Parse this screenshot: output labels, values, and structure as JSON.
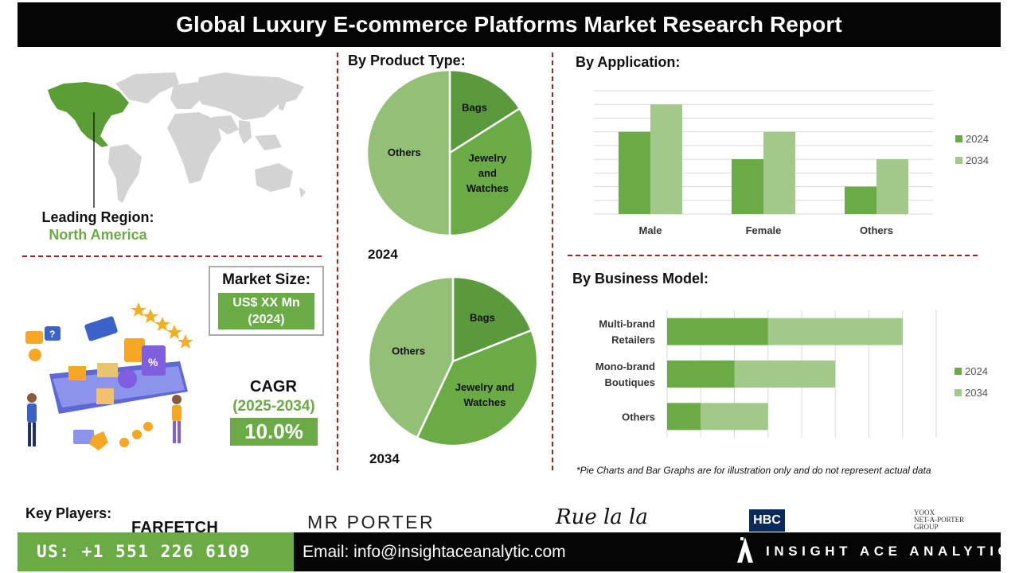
{
  "title": "Global Luxury E-commerce Platforms Market Research Report",
  "region": {
    "label": "Leading Region:",
    "value": "North America"
  },
  "market_size": {
    "label": "Market Size:",
    "value_line1": "US$ XX Mn",
    "value_line2": "(2024)"
  },
  "cagr": {
    "label": "CAGR",
    "years": "(2025-2034)",
    "value": "10.0%"
  },
  "product_type": {
    "title": "By  Product Type:",
    "year_2024": "2024",
    "year_2034": "2034"
  },
  "application": {
    "title": "By Application:"
  },
  "business_model": {
    "title": "By Business Model:"
  },
  "disclaimer": "*Pie Charts and Bar Graphs are for illustration only and do not represent actual data",
  "key_players": {
    "label": "Key Players:",
    "logos": [
      "FARFETCH",
      "MR PORTER",
      "Rue la la",
      "HBC",
      "YOOX NET-A-PORTER GROUP"
    ],
    "yoox_line1": "YOOX",
    "yoox_line2": "NET-A-PORTER",
    "yoox_line3": "GROUP"
  },
  "footer": {
    "phone": "US: +1 551 226 6109",
    "email": "Email: info@insightaceanalytic.com",
    "brand": "INSIGHT ACE ANALYTIC"
  },
  "colors": {
    "dark_green": "#5a9a3c",
    "mid_green": "#6aab45",
    "light_green": "#a3c98a",
    "pie_light": "#93bf76",
    "divider_red": "#b01f1f"
  },
  "chart_data": [
    {
      "type": "pie",
      "title": "2024",
      "labels": [
        "Bags",
        "Jewelry and Watches",
        "Others"
      ],
      "values": [
        16,
        34,
        50
      ]
    },
    {
      "type": "pie",
      "title": "2034",
      "labels": [
        "Bags",
        "Jewelry and Watches",
        "Others"
      ],
      "values": [
        19,
        38,
        43
      ]
    },
    {
      "type": "bar",
      "title": "By Application:",
      "categories": [
        "Male",
        "Female",
        "Others"
      ],
      "series": [
        {
          "name": "2024",
          "values": [
            6,
            4,
            2
          ]
        },
        {
          "name": "2034",
          "values": [
            8,
            6,
            4
          ]
        }
      ],
      "ylim": [
        0,
        9
      ],
      "grid": true,
      "legend": "right"
    },
    {
      "type": "bar",
      "orientation": "horizontal",
      "stacked": true,
      "title": "By Business Model:",
      "categories": [
        "Multi-brand Retailers",
        "Mono-brand Boutiques",
        "Others"
      ],
      "series": [
        {
          "name": "2024",
          "values": [
            3,
            2,
            1
          ]
        },
        {
          "name": "2034",
          "values": [
            4,
            3,
            2
          ]
        }
      ],
      "xlim": [
        0,
        8
      ],
      "grid": true,
      "legend": "right"
    }
  ]
}
